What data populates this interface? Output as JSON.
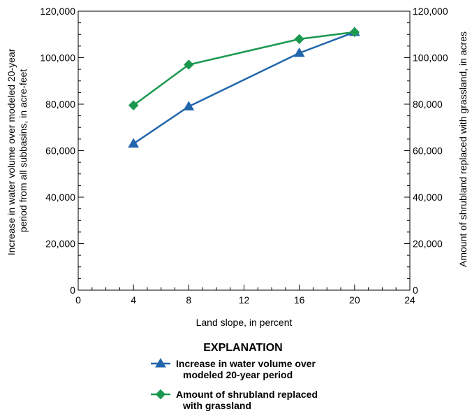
{
  "chart_data": {
    "type": "line",
    "xlabel": "Land slope, in percent",
    "ylabel_left": [
      "Increase in water volume over modeled 20-year",
      "period from all subbasins, in acre-feet"
    ],
    "ylabel_right": "Amount of shrubland replaced with grassland, in acres",
    "xlim": [
      0,
      24
    ],
    "ylim": [
      0,
      120000
    ],
    "x_ticks": [
      "0",
      "4",
      "8",
      "12",
      "16",
      "20",
      "24"
    ],
    "y_ticks_left": [
      "0",
      "20,000",
      "40,000",
      "60,000",
      "80,000",
      "100,000",
      "120,000"
    ],
    "y_ticks_right": [
      "0",
      "20,000",
      "40,000",
      "60,000",
      "80,000",
      "100,000",
      "120,000"
    ],
    "grid": false,
    "legend_title": "EXPLANATION",
    "legend_position": "bottom",
    "series": [
      {
        "name": [
          "Increase in water volume over",
          "modeled 20-year period"
        ],
        "color": "#2166ac",
        "marker": "triangle",
        "axis": "left",
        "x": [
          4,
          8,
          16,
          20
        ],
        "values": [
          63000,
          79000,
          102000,
          111000
        ]
      },
      {
        "name": [
          "Amount of shrubland replaced",
          "with grassland"
        ],
        "color": "#1a9850",
        "marker": "diamond",
        "axis": "right",
        "x": [
          4,
          8,
          16,
          20
        ],
        "values": [
          79500,
          97000,
          108000,
          111000
        ]
      }
    ]
  }
}
